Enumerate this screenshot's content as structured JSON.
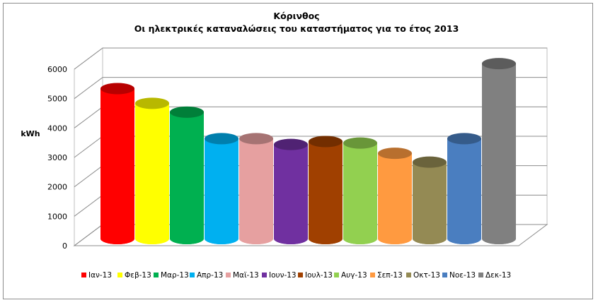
{
  "chart_data": {
    "type": "bar",
    "title": "Κόρινθος",
    "subtitle": "Οι ηλεκτρικές καταναλώσεις του καταστήματος για το έτος 2013",
    "ylabel": "kWh",
    "xlabel": "",
    "ylim": [
      0,
      6000
    ],
    "yticks": [
      "0",
      "1000",
      "2000",
      "3000",
      "4000",
      "5000",
      "6000"
    ],
    "grid": true,
    "legend_position": "bottom",
    "categories": [
      "Ιαν-13",
      "Φεβ-13",
      "Μαρ-13",
      "Απρ-13",
      "Μαϊ-13",
      "Ιουν-13",
      "Ιουλ-13",
      "Αυγ-13",
      "Σεπ-13",
      "Οκτ-13",
      "Νοε-13",
      "Δεκ-13"
    ],
    "values": [
      5100,
      4600,
      4300,
      3400,
      3400,
      3200,
      3300,
      3250,
      2900,
      2600,
      3400,
      5950
    ],
    "colors": [
      "#ff0000",
      "#ffff00",
      "#00b050",
      "#00b0f0",
      "#e6a0a0",
      "#7030a0",
      "#a04000",
      "#92d050",
      "#ff9a40",
      "#948a54",
      "#4a7ec0",
      "#808080"
    ]
  }
}
